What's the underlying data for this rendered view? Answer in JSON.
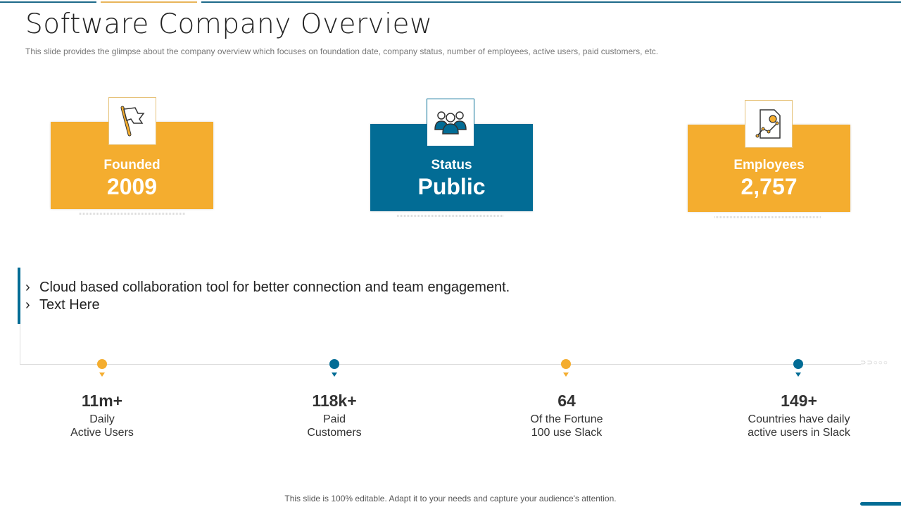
{
  "title": "Software Company Overview",
  "subtitle": "This slide provides  the glimpse about the company overview  which focuses on foundation date, company status, number of employees, active users, paid customers, etc.",
  "colors": {
    "orange": "#F4AD2F",
    "blue": "#026C95"
  },
  "cards": [
    {
      "label": "Founded",
      "value": "2009",
      "icon": "flag-icon",
      "color": "orange"
    },
    {
      "label": "Status",
      "value": "Public",
      "icon": "team-icon",
      "color": "blue"
    },
    {
      "label": "Employees",
      "value": "2,757",
      "icon": "report-chart-icon",
      "color": "orange"
    }
  ],
  "bullets": [
    "Cloud based collaboration tool for better connection and team engagement.",
    "Text Here"
  ],
  "bullet_marker": "›",
  "stats": [
    {
      "value": "11m+",
      "line1": "Daily",
      "line2": "Active Users",
      "color": "orange"
    },
    {
      "value": "118k+",
      "line1": "Paid",
      "line2": "Customers",
      "color": "blue"
    },
    {
      "value": "64",
      "line1": "Of the Fortune",
      "line2": "100 use Slack",
      "color": "orange"
    },
    {
      "value": "149+",
      "line1": "Countries have daily",
      "line2": "active users in Slack",
      "color": "blue"
    }
  ],
  "footer": "This slide is 100% editable. Adapt it to your needs and capture your audience's attention."
}
